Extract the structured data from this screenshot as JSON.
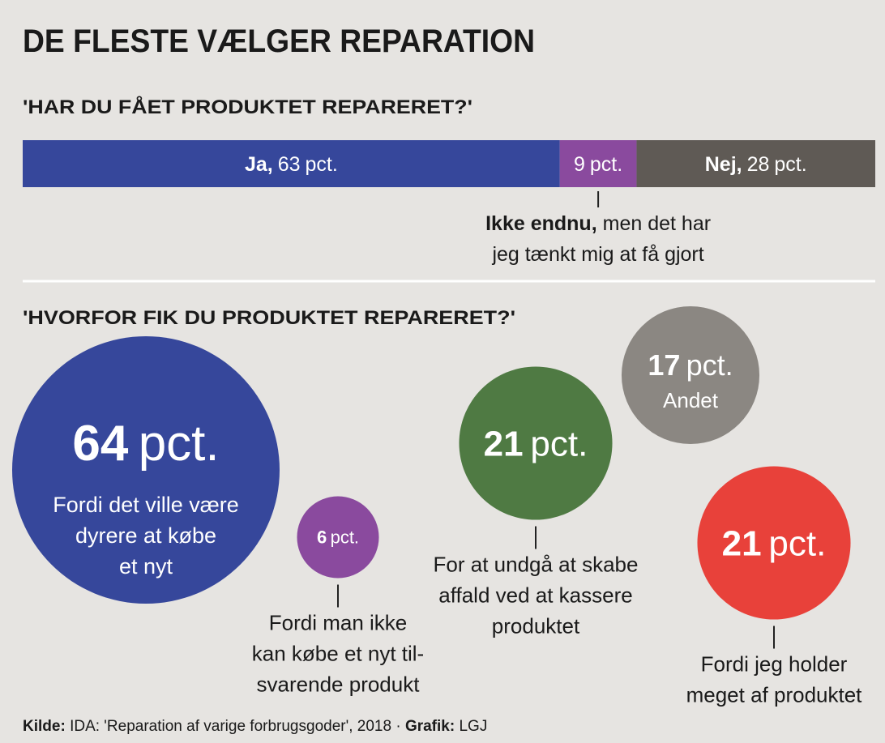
{
  "title": "DE FLESTE VÆLGER REPARATION",
  "chart_data": [
    {
      "type": "stacked_bar",
      "title": "'HAR DU FÅET PRODUKTET REPARERET?'",
      "categories": [
        "Ja,",
        "Ikke endnu,",
        "Nej,"
      ],
      "values": [
        63,
        9,
        28
      ],
      "unit": "pct.",
      "colors": [
        "#36479b",
        "#8a4a9e",
        "#5f5a55"
      ],
      "descriptions": [
        null,
        [
          "men det har",
          "jeg tænkt mig at få gjort"
        ],
        null
      ]
    },
    {
      "type": "bubble",
      "title": "'HVORFOR FIK DU PRODUKTET REPARERET?'",
      "values": [
        64,
        6,
        21,
        17,
        21
      ],
      "unit": "pct.",
      "colors": [
        "#36479b",
        "#8a4a9e",
        "#4f7a43",
        "#8b8782",
        "#e8413a"
      ],
      "labels": [
        [
          "Fordi det ville være",
          "dyrere at købe",
          "et nyt"
        ],
        [
          "Fordi man ikke",
          "kan købe et nyt til-",
          "svarende produkt"
        ],
        [
          "For at undgå at skabe",
          "affald ved at kassere",
          "produktet"
        ],
        [
          "Andet"
        ],
        [
          "Fordi jeg holder",
          "meget af produktet"
        ]
      ]
    }
  ],
  "source": {
    "label": "Kilde:",
    "text": "IDA: 'Reparation af varige forbrugsgoder', 2018 ·",
    "credit_label": "Grafik:",
    "credit": "LGJ"
  }
}
